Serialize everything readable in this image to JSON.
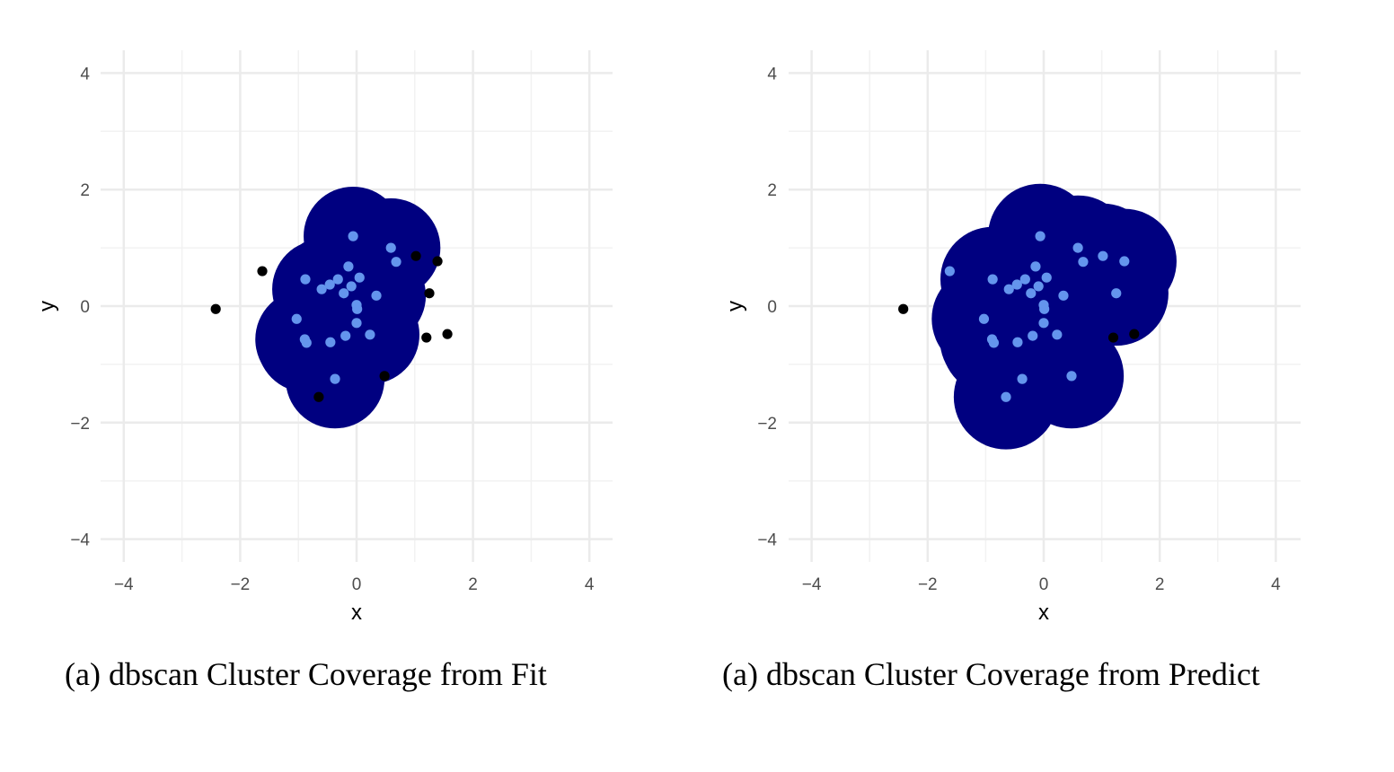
{
  "chart_data": [
    {
      "type": "scatter",
      "title": "",
      "caption": "(a) dbscan Cluster Coverage from Fit",
      "xlabel": "x",
      "ylabel": "y",
      "xlim": [
        -4.4,
        4.4
      ],
      "ylim": [
        -4.4,
        4.4
      ],
      "xticks": [
        -4,
        -2,
        0,
        2,
        4
      ],
      "yticks": [
        -4,
        -2,
        0,
        2,
        4
      ],
      "xtick_labels": [
        "−4",
        "−2",
        "0",
        "2",
        "4"
      ],
      "ytick_labels": [
        "−4",
        "−2",
        "0",
        "2",
        "4"
      ],
      "grid": true,
      "coverage_color": "#000080",
      "cluster_point_color": "#6495ED",
      "noise_point_color": "#000000",
      "coverage_radius": 0.85,
      "coverage_centers": [
        [
          -0.06,
          1.2
        ],
        [
          0.59,
          1.0
        ],
        [
          -0.14,
          0.68
        ],
        [
          -0.32,
          0.46
        ],
        [
          0.05,
          0.49
        ],
        [
          -0.46,
          0.37
        ],
        [
          -0.6,
          0.29
        ],
        [
          -0.09,
          0.34
        ],
        [
          -0.22,
          0.22
        ],
        [
          0.34,
          0.18
        ],
        [
          0.0,
          0.02
        ],
        [
          0.01,
          -0.05
        ],
        [
          0.0,
          -0.29
        ],
        [
          -0.45,
          -0.62
        ],
        [
          -0.19,
          -0.51
        ],
        [
          0.23,
          -0.49
        ],
        [
          -0.89,
          -0.57
        ],
        [
          -0.86,
          -0.63
        ],
        [
          -0.37,
          -1.25
        ]
      ],
      "series": [
        {
          "name": "cluster",
          "points": [
            [
              -0.06,
              1.2
            ],
            [
              0.59,
              1.0
            ],
            [
              0.68,
              0.76
            ],
            [
              -0.14,
              0.68
            ],
            [
              -0.88,
              0.46
            ],
            [
              -0.32,
              0.46
            ],
            [
              0.05,
              0.49
            ],
            [
              -0.46,
              0.37
            ],
            [
              -0.6,
              0.29
            ],
            [
              -0.09,
              0.34
            ],
            [
              -0.22,
              0.22
            ],
            [
              0.34,
              0.18
            ],
            [
              0.0,
              0.02
            ],
            [
              0.01,
              -0.05
            ],
            [
              -1.03,
              -0.22
            ],
            [
              0.0,
              -0.29
            ],
            [
              -0.89,
              -0.57
            ],
            [
              -0.86,
              -0.63
            ],
            [
              -0.45,
              -0.62
            ],
            [
              -0.19,
              -0.51
            ],
            [
              0.23,
              -0.49
            ],
            [
              -0.37,
              -1.25
            ]
          ]
        },
        {
          "name": "noise",
          "points": [
            [
              -2.42,
              -0.05
            ],
            [
              -1.62,
              0.6
            ],
            [
              1.02,
              0.86
            ],
            [
              1.39,
              0.77
            ],
            [
              1.25,
              0.22
            ],
            [
              1.2,
              -0.54
            ],
            [
              1.56,
              -0.48
            ],
            [
              0.48,
              -1.2
            ],
            [
              -0.65,
              -1.56
            ]
          ]
        }
      ]
    },
    {
      "type": "scatter",
      "title": "",
      "caption": "(a) dbscan Cluster Coverage from Predict",
      "xlabel": "x",
      "ylabel": "y",
      "xlim": [
        -4.4,
        4.4
      ],
      "ylim": [
        -4.4,
        4.4
      ],
      "xticks": [
        -4,
        -2,
        0,
        2,
        4
      ],
      "yticks": [
        -4,
        -2,
        0,
        2,
        4
      ],
      "xtick_labels": [
        "−4",
        "−2",
        "0",
        "2",
        "4"
      ],
      "ytick_labels": [
        "−4",
        "−2",
        "0",
        "2",
        "4"
      ],
      "grid": true,
      "coverage_color": "#000080",
      "cluster_point_color": "#6495ED",
      "noise_point_color": "#000000",
      "coverage_radius": 0.9,
      "coverage_centers": [
        [
          -0.06,
          1.2
        ],
        [
          0.59,
          1.0
        ],
        [
          0.68,
          0.76
        ],
        [
          1.02,
          0.86
        ],
        [
          1.39,
          0.77
        ],
        [
          -0.14,
          0.68
        ],
        [
          -0.88,
          0.46
        ],
        [
          -0.32,
          0.46
        ],
        [
          0.05,
          0.49
        ],
        [
          -0.46,
          0.37
        ],
        [
          -0.6,
          0.29
        ],
        [
          -0.09,
          0.34
        ],
        [
          -0.22,
          0.22
        ],
        [
          0.34,
          0.18
        ],
        [
          1.25,
          0.22
        ],
        [
          0.0,
          0.02
        ],
        [
          0.01,
          -0.05
        ],
        [
          -1.03,
          -0.22
        ],
        [
          0.0,
          -0.29
        ],
        [
          -0.89,
          -0.57
        ],
        [
          -0.86,
          -0.63
        ],
        [
          -0.45,
          -0.62
        ],
        [
          -0.19,
          -0.51
        ],
        [
          0.23,
          -0.49
        ],
        [
          -0.37,
          -1.25
        ],
        [
          0.48,
          -1.2
        ],
        [
          -0.65,
          -1.56
        ]
      ],
      "series": [
        {
          "name": "cluster",
          "points": [
            [
              -0.06,
              1.2
            ],
            [
              0.59,
              1.0
            ],
            [
              0.68,
              0.76
            ],
            [
              1.02,
              0.86
            ],
            [
              1.39,
              0.77
            ],
            [
              -1.62,
              0.6
            ],
            [
              -0.14,
              0.68
            ],
            [
              -0.88,
              0.46
            ],
            [
              -0.32,
              0.46
            ],
            [
              0.05,
              0.49
            ],
            [
              -0.46,
              0.37
            ],
            [
              -0.6,
              0.29
            ],
            [
              -0.09,
              0.34
            ],
            [
              -0.22,
              0.22
            ],
            [
              0.34,
              0.18
            ],
            [
              1.25,
              0.22
            ],
            [
              0.0,
              0.02
            ],
            [
              0.01,
              -0.05
            ],
            [
              -1.03,
              -0.22
            ],
            [
              0.0,
              -0.29
            ],
            [
              -0.89,
              -0.57
            ],
            [
              -0.86,
              -0.63
            ],
            [
              -0.45,
              -0.62
            ],
            [
              -0.19,
              -0.51
            ],
            [
              0.23,
              -0.49
            ],
            [
              -0.37,
              -1.25
            ],
            [
              0.48,
              -1.2
            ],
            [
              -0.65,
              -1.56
            ]
          ]
        },
        {
          "name": "noise",
          "points": [
            [
              -2.42,
              -0.05
            ],
            [
              1.2,
              -0.54
            ],
            [
              1.56,
              -0.48
            ]
          ]
        }
      ]
    }
  ]
}
